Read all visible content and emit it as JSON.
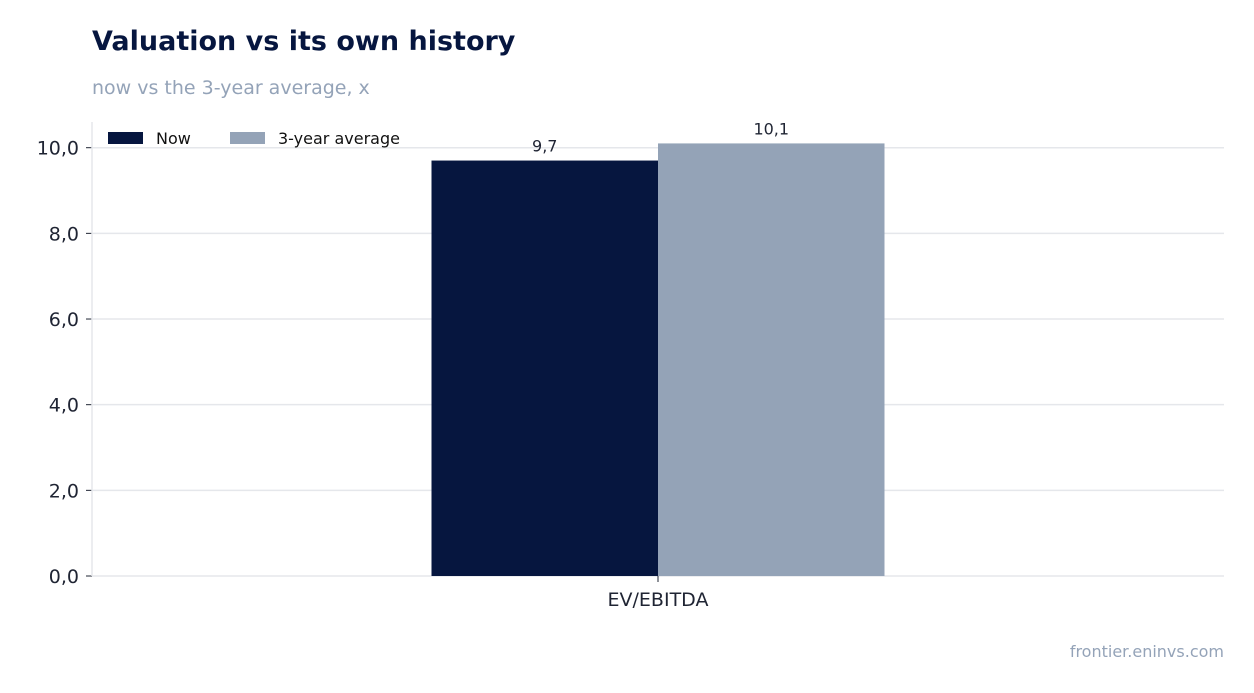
{
  "title": "Valuation vs its own history",
  "subtitle": "now vs the 3-year average, x",
  "footer": "frontier.eninvs.com",
  "colors": {
    "now": "#06163f",
    "avg": "#94a3b7",
    "grid": "#e5e7eb",
    "text": "#1f2433"
  },
  "chart_data": {
    "type": "bar",
    "categories": [
      "EV/EBITDA"
    ],
    "series": [
      {
        "name": "Now",
        "values": [
          9.7
        ],
        "labels": [
          "9,7"
        ]
      },
      {
        "name": "3-year average",
        "values": [
          10.1
        ],
        "labels": [
          "10,1"
        ]
      }
    ],
    "ylim": [
      0,
      10.6
    ],
    "yticks": [
      0,
      2,
      4,
      6,
      8,
      10
    ],
    "ytick_labels": [
      "0,0",
      "2,0",
      "4,0",
      "6,0",
      "8,0",
      "10,0"
    ],
    "grid": true,
    "legend": "top-left"
  }
}
